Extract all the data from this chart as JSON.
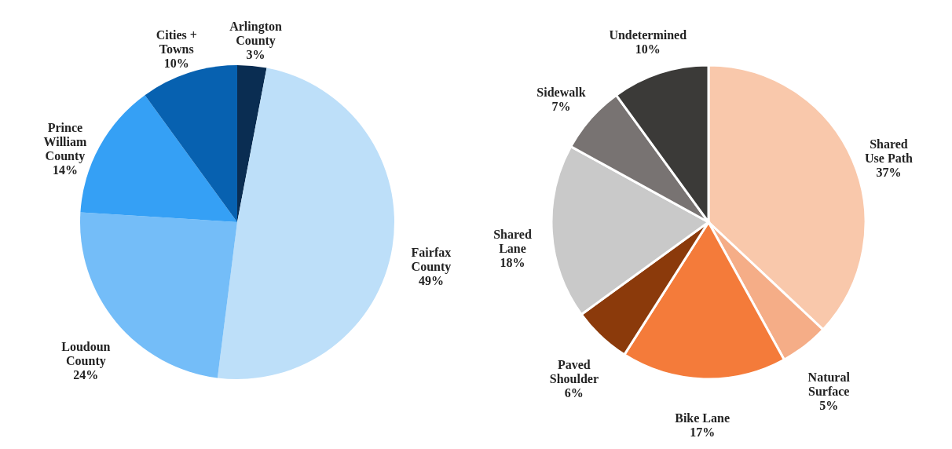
{
  "chart_data": [
    {
      "type": "pie",
      "categories": [
        "Arlington County",
        "Fairfax County",
        "Loudoun County",
        "Prince William County",
        "Cities + Towns"
      ],
      "values": [
        3,
        49,
        24,
        14,
        10
      ],
      "colors": [
        "#0a2d52",
        "#bddff9",
        "#74bdf8",
        "#35a0f5",
        "#0761b0"
      ],
      "value_labels": [
        "3%",
        "49%",
        "24%",
        "14%",
        "10%"
      ],
      "legend": false
    },
    {
      "type": "pie",
      "categories": [
        "Shared Use Path",
        "Natural Surface",
        "Bike Lane",
        "Paved Shoulder",
        "Shared Lane",
        "Sidewalk",
        "Undetermined"
      ],
      "values": [
        37,
        5,
        17,
        6,
        18,
        7,
        10
      ],
      "colors": [
        "#f9c8ab",
        "#f5ad87",
        "#f47b3a",
        "#8b3a0b",
        "#c9c9c9",
        "#787372",
        "#3b3a38"
      ],
      "value_labels": [
        "37%",
        "5%",
        "17%",
        "6%",
        "18%",
        "7%",
        "10%"
      ],
      "legend": false
    }
  ]
}
